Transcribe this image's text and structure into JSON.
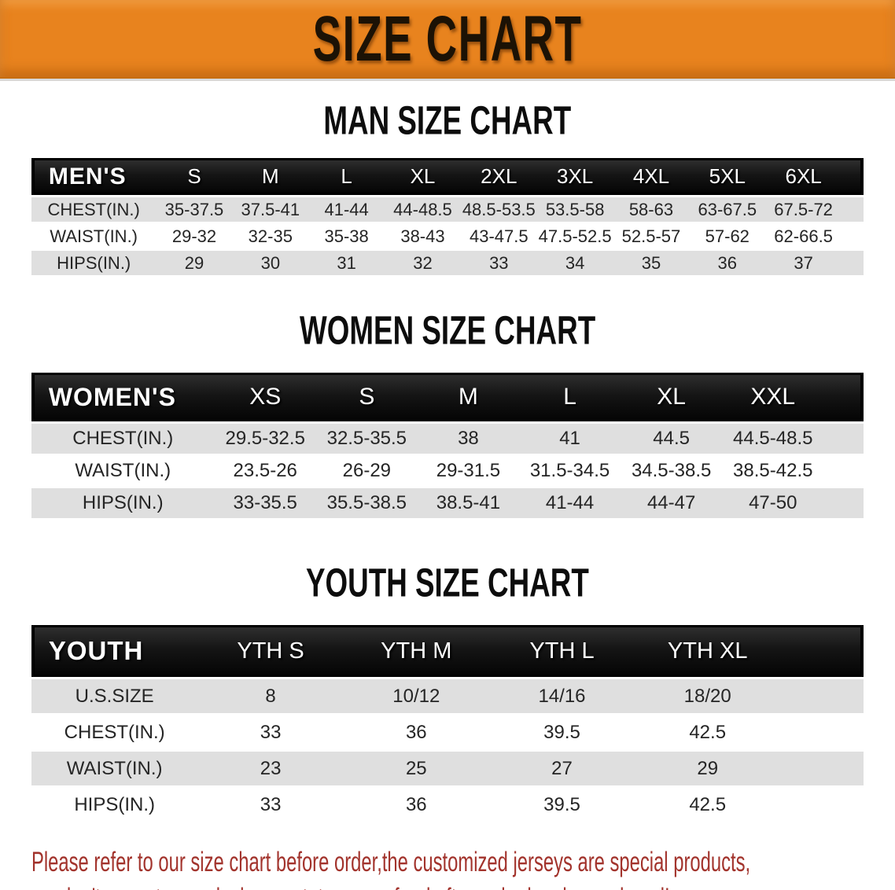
{
  "banner": {
    "title": "SIZE CHART",
    "bg_color": "#E8831E",
    "text_color": "#1C1205"
  },
  "colors": {
    "header_bar_bg": "#141414",
    "header_bar_text": "#FFFFFF",
    "row_stripe_bg": "#DFDFDF",
    "heading_text": "#0D0D0D",
    "disclaimer_text": "#A2332C"
  },
  "sections": [
    {
      "id": "mens",
      "heading": "MAN SIZE CHART",
      "header_label": "MEN'S",
      "columns": [
        "S",
        "M",
        "L",
        "XL",
        "2XL",
        "3XL",
        "4XL",
        "5XL",
        "6XL"
      ],
      "rows": [
        {
          "label": "CHEST(IN.)",
          "values": [
            "35-37.5",
            "37.5-41",
            "41-44",
            "44-48.5",
            "48.5-53.5",
            "53.5-58",
            "58-63",
            "63-67.5",
            "67.5-72"
          ]
        },
        {
          "label": "WAIST(IN.)",
          "values": [
            "29-32",
            "32-35",
            "35-38",
            "38-43",
            "43-47.5",
            "47.5-52.5",
            "52.5-57",
            "57-62",
            "62-66.5"
          ]
        },
        {
          "label": "HIPS(IN.)",
          "values": [
            "29",
            "30",
            "31",
            "32",
            "33",
            "34",
            "35",
            "36",
            "37"
          ]
        }
      ]
    },
    {
      "id": "womens",
      "heading": "WOMEN SIZE CHART",
      "header_label": "WOMEN'S",
      "columns": [
        "XS",
        "S",
        "M",
        "L",
        "XL",
        "XXL"
      ],
      "rows": [
        {
          "label": "CHEST(IN.)",
          "values": [
            "29.5-32.5",
            "32.5-35.5",
            "38",
            "41",
            "44.5",
            "44.5-48.5"
          ]
        },
        {
          "label": "WAIST(IN.)",
          "values": [
            "23.5-26",
            "26-29",
            "29-31.5",
            "31.5-34.5",
            "34.5-38.5",
            "38.5-42.5"
          ]
        },
        {
          "label": "HIPS(IN.)",
          "values": [
            "33-35.5",
            "35.5-38.5",
            "38.5-41",
            "41-44",
            "44-47",
            "47-50"
          ]
        }
      ]
    },
    {
      "id": "youth",
      "heading": "YOUTH SIZE CHART",
      "header_label": "YOUTH",
      "columns": [
        "YTH S",
        "YTH M",
        "YTH L",
        "YTH XL"
      ],
      "rows": [
        {
          "label": "U.S.SIZE",
          "values": [
            "8",
            "10/12",
            "14/16",
            "18/20"
          ]
        },
        {
          "label": "CHEST(IN.)",
          "values": [
            "33",
            "36",
            "39.5",
            "42.5"
          ]
        },
        {
          "label": "WAIST(IN.)",
          "values": [
            "23",
            "25",
            "27",
            "29"
          ]
        },
        {
          "label": "HIPS(IN.)",
          "values": [
            "33",
            "36",
            "39.5",
            "42.5"
          ]
        }
      ]
    }
  ],
  "disclaimer": {
    "lines": [
      "Please refer to our size chart before order,the customized jerseys are special products,",
      "we don't accept cancel, change, teturn or refund after order has been placed!"
    ]
  }
}
